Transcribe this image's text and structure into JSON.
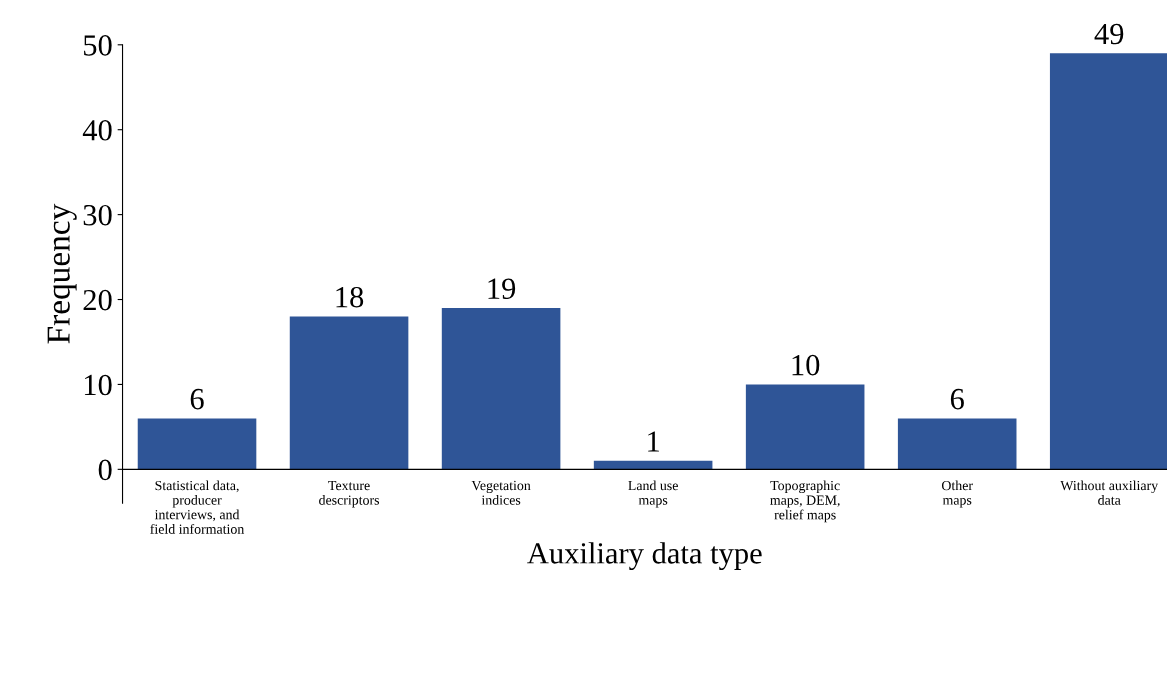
{
  "chart_data": {
    "type": "bar",
    "categories": [
      "Statistical data,\nproducer\ninterviews, and\nfield information",
      "Texture\ndescriptors",
      "Vegetation\nindices",
      "Land use\nmaps",
      "Topographic\nmaps, DEM,\nrelief maps",
      "Other\nmaps",
      "Without auxiliary\ndata"
    ],
    "values": [
      6,
      18,
      19,
      1,
      10,
      6,
      49
    ],
    "color": "#2f5597",
    "xlabel": "Auxiliary data type",
    "ylabel": "Frequency",
    "ylim": [
      -4,
      50
    ],
    "yticks": [
      0,
      10,
      20,
      30,
      40,
      50
    ],
    "data_labels": true,
    "grid": false,
    "legend": false
  }
}
